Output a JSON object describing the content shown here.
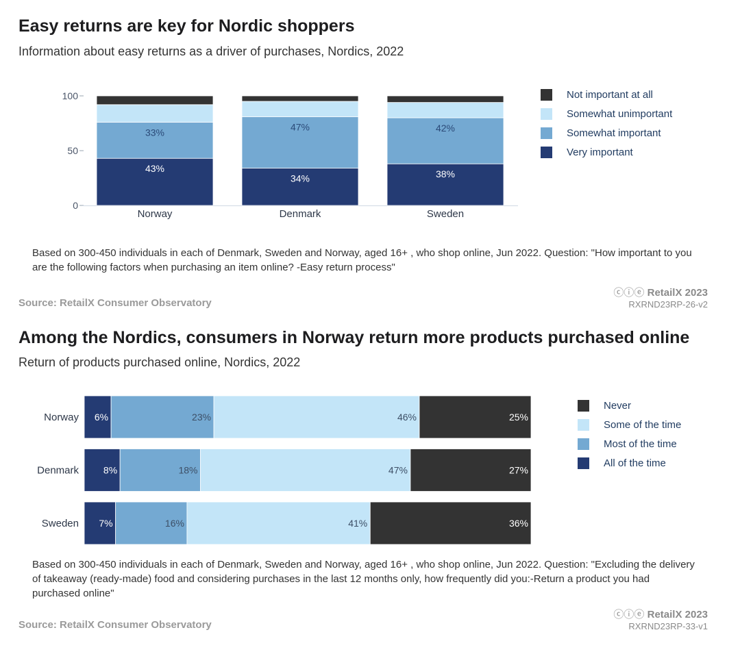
{
  "chart1": {
    "title": "Easy returns are key for Nordic shoppers",
    "subtitle": "Information about easy returns as a driver of purchases, Nordics, 2022",
    "note": "Based on 300-450 individuals in each of Denmark, Sweden and Norway, aged 16+ , who shop online, Jun 2022. Question: \"How important to you are the following factors when purchasing an item online? -Easy return process\"",
    "source": "Source: RetailX Consumer Observatory",
    "brand": "RetailX 2023",
    "code": "RXRND23RP-26-v2",
    "legend": [
      {
        "name": "Not important at all",
        "color": "#333333"
      },
      {
        "name": "Somewhat unimportant",
        "color": "#c3e5f8"
      },
      {
        "name": "Somewhat important",
        "color": "#74a9d2"
      },
      {
        "name": "Very important",
        "color": "#243b73"
      }
    ]
  },
  "chart2": {
    "title": "Among the Nordics, consumers in Norway return more products purchased online",
    "subtitle": "Return of products purchased online, Nordics, 2022",
    "note": "Based on 300-450 individuals in each of Denmark, Sweden and Norway, aged 16+ , who shop online, Jun 2022. Question: \"Excluding the delivery of takeaway (ready-made) food and considering purchases in the last 12 months only, how frequently did you:-Return a product you had purchased online\"",
    "source": "Source: RetailX Consumer Observatory",
    "brand": "RetailX 2023",
    "code": "RXRND23RP-33-v1",
    "legend": [
      {
        "name": "Never",
        "color": "#333333"
      },
      {
        "name": "Some of the time",
        "color": "#c3e5f8"
      },
      {
        "name": "Most of the time",
        "color": "#74a9d2"
      },
      {
        "name": "All of the time",
        "color": "#243b73"
      }
    ]
  },
  "chart_data": [
    {
      "type": "bar",
      "orientation": "vertical",
      "stacked": true,
      "title": "Easy returns are key for Nordic shoppers",
      "categories": [
        "Norway",
        "Denmark",
        "Sweden"
      ],
      "ylim": [
        0,
        100
      ],
      "yticks": [
        0,
        50,
        100
      ],
      "series": [
        {
          "name": "Very important",
          "color": "#243b73",
          "values": [
            43,
            34,
            38
          ],
          "labels": [
            "43%",
            "34%",
            "38%"
          ]
        },
        {
          "name": "Somewhat important",
          "color": "#74a9d2",
          "values": [
            33,
            47,
            42
          ],
          "labels": [
            "33%",
            "47%",
            "42%"
          ]
        },
        {
          "name": "Somewhat unimportant",
          "color": "#c3e5f8",
          "values": [
            16,
            14,
            14
          ],
          "labels": [
            "",
            "",
            ""
          ]
        },
        {
          "name": "Not important at all",
          "color": "#333333",
          "values": [
            8,
            5,
            6
          ],
          "labels": [
            "",
            "",
            ""
          ]
        }
      ],
      "legend": "right"
    },
    {
      "type": "bar",
      "orientation": "horizontal",
      "stacked": true,
      "title": "Among the Nordics, consumers in Norway return more products purchased online",
      "categories": [
        "Norway",
        "Denmark",
        "Sweden"
      ],
      "series": [
        {
          "name": "All of the time",
          "color": "#243b73",
          "values": [
            6,
            8,
            7
          ],
          "labels": [
            "6%",
            "8%",
            "7%"
          ]
        },
        {
          "name": "Most of the time",
          "color": "#74a9d2",
          "values": [
            23,
            18,
            16
          ],
          "labels": [
            "23%",
            "18%",
            "16%"
          ]
        },
        {
          "name": "Some of the time",
          "color": "#c3e5f8",
          "values": [
            46,
            47,
            41
          ],
          "labels": [
            "46%",
            "47%",
            "41%"
          ]
        },
        {
          "name": "Never",
          "color": "#333333",
          "values": [
            25,
            27,
            36
          ],
          "labels": [
            "25%",
            "27%",
            "36%"
          ]
        }
      ],
      "legend": "right"
    }
  ]
}
